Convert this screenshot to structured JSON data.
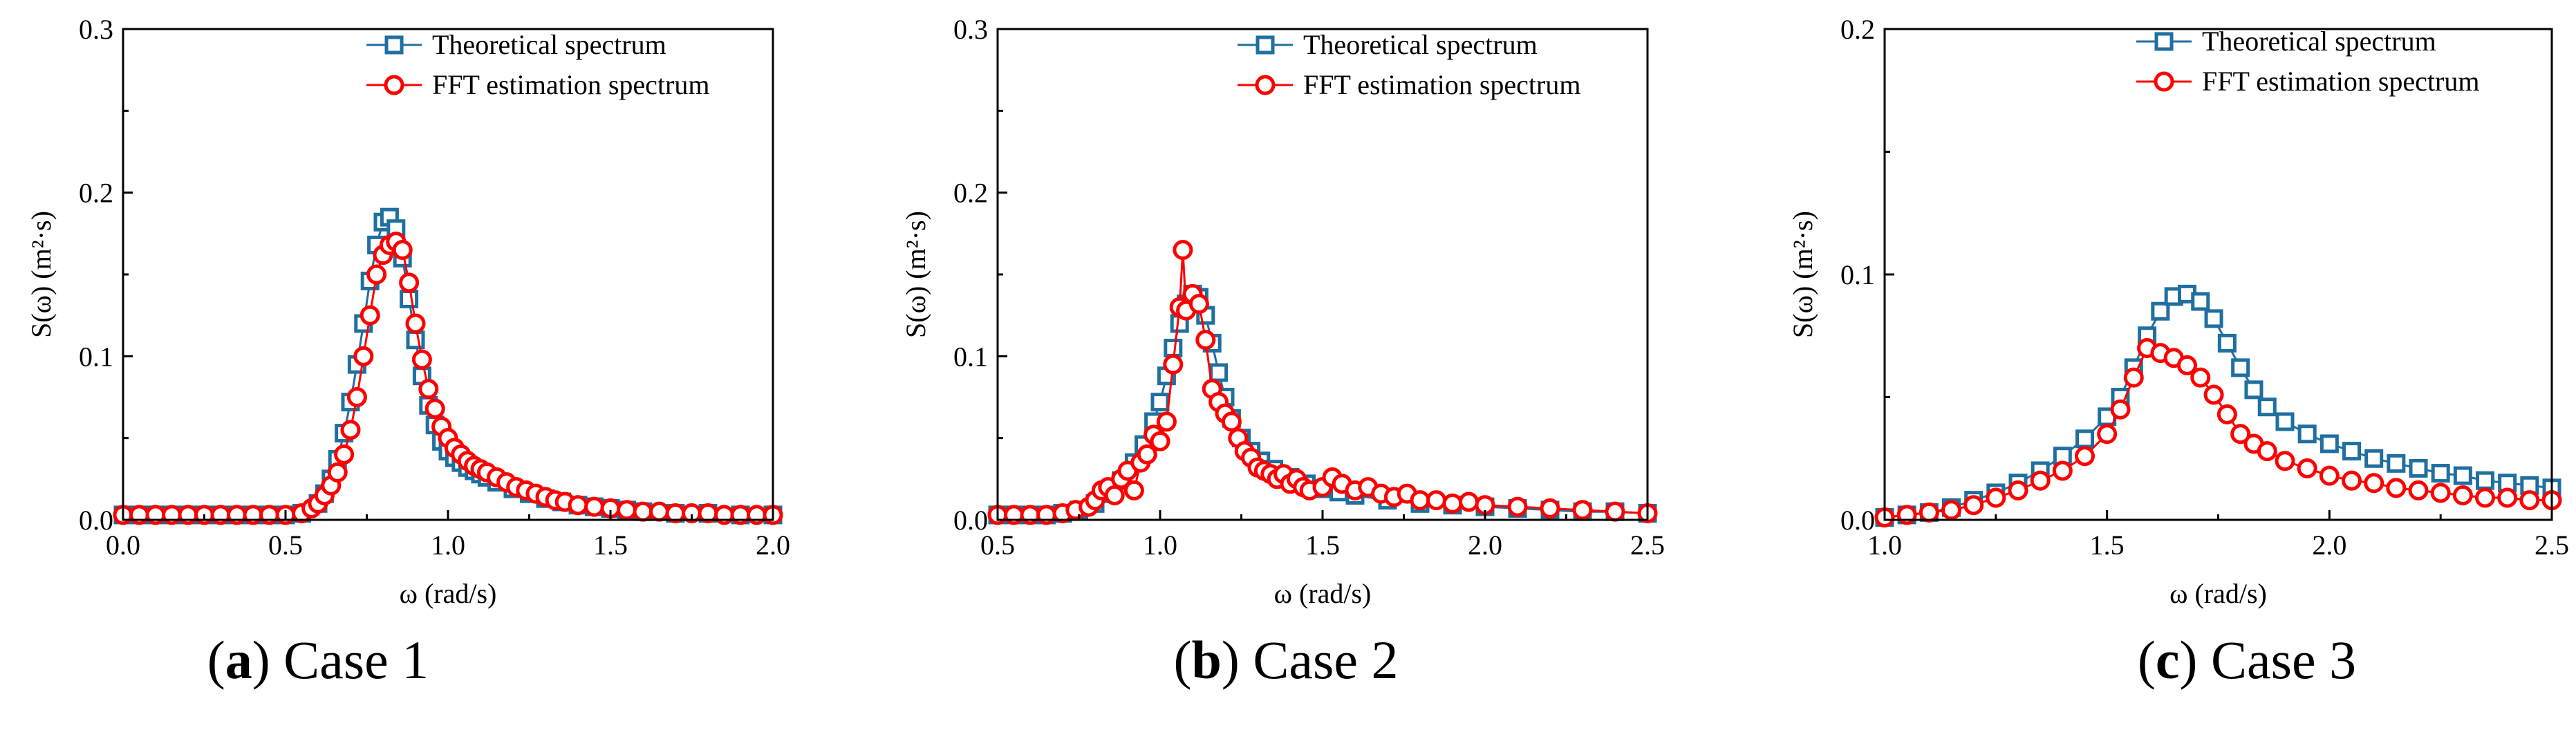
{
  "colors": {
    "theoretical": "#1f6fa0",
    "fft": "#ff0000",
    "axis": "#000000"
  },
  "chart_data": [
    {
      "type": "line",
      "panel_letter": "a",
      "caption": "Case 1",
      "xlabel": "ω (rad/s)",
      "ylabel": "S(ω) (m²·s)",
      "xlim": [
        0.0,
        2.0
      ],
      "ylim": [
        0.0,
        0.3
      ],
      "xticks": [
        "0.0",
        "0.5",
        "1.0",
        "1.5",
        "2.0"
      ],
      "yticks": [
        "0.0",
        "0.1",
        "0.2",
        "0.3"
      ],
      "legend": [
        "Theoretical spectrum",
        "FFT estimation spectrum"
      ],
      "series": [
        {
          "name": "Theoretical spectrum",
          "marker": "square",
          "x": [
            0.0,
            0.05,
            0.1,
            0.15,
            0.2,
            0.25,
            0.3,
            0.35,
            0.4,
            0.45,
            0.5,
            0.55,
            0.6,
            0.62,
            0.64,
            0.66,
            0.68,
            0.7,
            0.72,
            0.74,
            0.76,
            0.78,
            0.8,
            0.82,
            0.84,
            0.86,
            0.88,
            0.9,
            0.92,
            0.94,
            0.96,
            0.98,
            1.0,
            1.02,
            1.04,
            1.06,
            1.08,
            1.1,
            1.12,
            1.15,
            1.2,
            1.25,
            1.3,
            1.35,
            1.4,
            1.45,
            1.5,
            1.55,
            1.6,
            1.7,
            1.8,
            1.9,
            2.0
          ],
          "y": [
            0.003,
            0.003,
            0.003,
            0.003,
            0.003,
            0.003,
            0.003,
            0.003,
            0.003,
            0.003,
            0.003,
            0.004,
            0.01,
            0.016,
            0.025,
            0.037,
            0.053,
            0.072,
            0.095,
            0.12,
            0.146,
            0.168,
            0.182,
            0.185,
            0.178,
            0.16,
            0.135,
            0.11,
            0.088,
            0.07,
            0.058,
            0.048,
            0.042,
            0.038,
            0.035,
            0.032,
            0.03,
            0.028,
            0.026,
            0.023,
            0.019,
            0.016,
            0.013,
            0.011,
            0.009,
            0.008,
            0.007,
            0.006,
            0.005,
            0.004,
            0.004,
            0.003,
            0.003
          ]
        },
        {
          "name": "FFT estimation spectrum",
          "marker": "circle",
          "x": [
            0.0,
            0.05,
            0.1,
            0.15,
            0.2,
            0.25,
            0.3,
            0.35,
            0.4,
            0.45,
            0.5,
            0.55,
            0.58,
            0.6,
            0.62,
            0.64,
            0.66,
            0.68,
            0.7,
            0.72,
            0.74,
            0.76,
            0.78,
            0.8,
            0.82,
            0.84,
            0.86,
            0.88,
            0.9,
            0.92,
            0.94,
            0.96,
            0.98,
            1.0,
            1.02,
            1.04,
            1.06,
            1.08,
            1.1,
            1.12,
            1.15,
            1.18,
            1.21,
            1.24,
            1.27,
            1.3,
            1.33,
            1.36,
            1.4,
            1.45,
            1.5,
            1.55,
            1.6,
            1.65,
            1.7,
            1.75,
            1.8,
            1.85,
            1.9,
            1.95,
            2.0
          ],
          "y": [
            0.003,
            0.003,
            0.003,
            0.003,
            0.003,
            0.003,
            0.003,
            0.003,
            0.003,
            0.003,
            0.003,
            0.004,
            0.007,
            0.01,
            0.015,
            0.021,
            0.029,
            0.04,
            0.055,
            0.075,
            0.1,
            0.125,
            0.15,
            0.162,
            0.168,
            0.17,
            0.165,
            0.145,
            0.12,
            0.098,
            0.08,
            0.068,
            0.057,
            0.05,
            0.044,
            0.04,
            0.036,
            0.033,
            0.031,
            0.029,
            0.026,
            0.023,
            0.02,
            0.018,
            0.016,
            0.014,
            0.012,
            0.011,
            0.009,
            0.008,
            0.007,
            0.006,
            0.005,
            0.005,
            0.004,
            0.004,
            0.004,
            0.003,
            0.003,
            0.003,
            0.003
          ]
        }
      ]
    },
    {
      "type": "line",
      "panel_letter": "b",
      "caption": "Case 2",
      "xlabel": "ω (rad/s)",
      "ylabel": "S(ω) (m²·s)",
      "xlim": [
        0.5,
        2.5
      ],
      "ylim": [
        0.0,
        0.3
      ],
      "xticks": [
        "0.5",
        "1.0",
        "1.5",
        "2.0",
        "2.5"
      ],
      "yticks": [
        "0.0",
        "0.1",
        "0.2",
        "0.3"
      ],
      "legend": [
        "Theoretical spectrum",
        "FFT estimation spectrum"
      ],
      "series": [
        {
          "name": "Theoretical spectrum",
          "marker": "square",
          "x": [
            0.5,
            0.55,
            0.6,
            0.65,
            0.7,
            0.75,
            0.8,
            0.84,
            0.88,
            0.92,
            0.95,
            0.98,
            1.0,
            1.02,
            1.04,
            1.06,
            1.08,
            1.1,
            1.12,
            1.14,
            1.16,
            1.18,
            1.2,
            1.22,
            1.25,
            1.28,
            1.31,
            1.35,
            1.4,
            1.45,
            1.5,
            1.55,
            1.6,
            1.7,
            1.8,
            1.9,
            2.0,
            2.1,
            2.2,
            2.3,
            2.4,
            2.5
          ],
          "y": [
            0.003,
            0.003,
            0.003,
            0.003,
            0.004,
            0.006,
            0.01,
            0.016,
            0.024,
            0.035,
            0.046,
            0.06,
            0.072,
            0.088,
            0.105,
            0.12,
            0.132,
            0.138,
            0.136,
            0.125,
            0.108,
            0.09,
            0.075,
            0.062,
            0.05,
            0.042,
            0.036,
            0.031,
            0.026,
            0.022,
            0.019,
            0.017,
            0.015,
            0.012,
            0.01,
            0.009,
            0.008,
            0.007,
            0.006,
            0.005,
            0.005,
            0.004
          ]
        },
        {
          "name": "FFT estimation spectrum",
          "marker": "circle",
          "x": [
            0.5,
            0.55,
            0.6,
            0.65,
            0.7,
            0.74,
            0.78,
            0.8,
            0.82,
            0.84,
            0.86,
            0.88,
            0.9,
            0.92,
            0.94,
            0.96,
            0.98,
            1.0,
            1.02,
            1.04,
            1.06,
            1.07,
            1.08,
            1.1,
            1.12,
            1.14,
            1.16,
            1.18,
            1.2,
            1.22,
            1.24,
            1.26,
            1.28,
            1.3,
            1.32,
            1.34,
            1.36,
            1.38,
            1.4,
            1.42,
            1.44,
            1.46,
            1.5,
            1.53,
            1.56,
            1.6,
            1.64,
            1.68,
            1.72,
            1.76,
            1.8,
            1.85,
            1.9,
            1.95,
            2.0,
            2.1,
            2.2,
            2.3,
            2.4,
            2.5
          ],
          "y": [
            0.003,
            0.003,
            0.003,
            0.003,
            0.004,
            0.006,
            0.008,
            0.012,
            0.018,
            0.02,
            0.015,
            0.025,
            0.03,
            0.018,
            0.035,
            0.04,
            0.052,
            0.048,
            0.06,
            0.095,
            0.13,
            0.165,
            0.128,
            0.138,
            0.132,
            0.11,
            0.08,
            0.072,
            0.065,
            0.06,
            0.05,
            0.042,
            0.038,
            0.032,
            0.03,
            0.028,
            0.025,
            0.028,
            0.022,
            0.025,
            0.02,
            0.018,
            0.02,
            0.026,
            0.022,
            0.018,
            0.02,
            0.016,
            0.014,
            0.016,
            0.012,
            0.012,
            0.01,
            0.011,
            0.009,
            0.008,
            0.007,
            0.006,
            0.005,
            0.004
          ]
        }
      ]
    },
    {
      "type": "line",
      "panel_letter": "c",
      "caption": "Case 3",
      "xlabel": "ω (rad/s)",
      "ylabel": "S(ω) (m²·s)",
      "xlim": [
        1.0,
        2.5
      ],
      "ylim": [
        0.0,
        0.2
      ],
      "xticks": [
        "1.0",
        "1.5",
        "2.0",
        "2.5"
      ],
      "yticks": [
        "0.0",
        "0.1",
        "0.2"
      ],
      "legend": [
        "Theoretical spectrum",
        "FFT estimation spectrum"
      ],
      "series": [
        {
          "name": "Theoretical spectrum",
          "marker": "square",
          "x": [
            1.0,
            1.05,
            1.1,
            1.15,
            1.2,
            1.25,
            1.3,
            1.35,
            1.4,
            1.45,
            1.5,
            1.53,
            1.56,
            1.59,
            1.62,
            1.65,
            1.68,
            1.71,
            1.74,
            1.77,
            1.8,
            1.83,
            1.86,
            1.9,
            1.95,
            2.0,
            2.05,
            2.1,
            2.15,
            2.2,
            2.25,
            2.3,
            2.35,
            2.4,
            2.45,
            2.5
          ],
          "y": [
            0.001,
            0.002,
            0.003,
            0.005,
            0.008,
            0.011,
            0.015,
            0.02,
            0.026,
            0.033,
            0.042,
            0.05,
            0.062,
            0.075,
            0.085,
            0.091,
            0.092,
            0.089,
            0.082,
            0.072,
            0.062,
            0.053,
            0.046,
            0.04,
            0.035,
            0.031,
            0.028,
            0.025,
            0.023,
            0.021,
            0.019,
            0.018,
            0.016,
            0.015,
            0.014,
            0.013
          ]
        },
        {
          "name": "FFT estimation spectrum",
          "marker": "circle",
          "x": [
            1.0,
            1.05,
            1.1,
            1.15,
            1.2,
            1.25,
            1.3,
            1.35,
            1.4,
            1.45,
            1.5,
            1.53,
            1.56,
            1.59,
            1.62,
            1.65,
            1.68,
            1.71,
            1.74,
            1.77,
            1.8,
            1.83,
            1.86,
            1.9,
            1.95,
            2.0,
            2.05,
            2.1,
            2.15,
            2.2,
            2.25,
            2.3,
            2.35,
            2.4,
            2.45,
            2.5
          ],
          "y": [
            0.001,
            0.002,
            0.003,
            0.004,
            0.006,
            0.009,
            0.012,
            0.016,
            0.02,
            0.026,
            0.035,
            0.045,
            0.058,
            0.07,
            0.068,
            0.066,
            0.063,
            0.058,
            0.051,
            0.043,
            0.035,
            0.031,
            0.028,
            0.024,
            0.021,
            0.018,
            0.016,
            0.015,
            0.013,
            0.012,
            0.011,
            0.01,
            0.009,
            0.009,
            0.008,
            0.008
          ]
        }
      ]
    }
  ]
}
